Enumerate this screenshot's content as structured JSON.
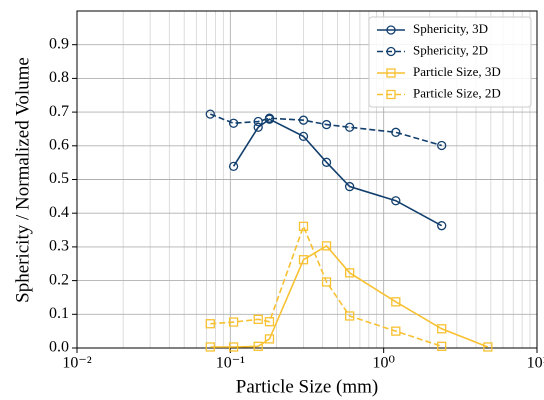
{
  "chart_data": {
    "type": "line",
    "xlabel": "Particle Size (mm)",
    "ylabel": "Sphericity / Normalized Volume",
    "xscale": "log",
    "xlim": [
      0.01,
      10
    ],
    "ylim": [
      0,
      1
    ],
    "xticks": [
      {
        "value": 0.01,
        "label": "10⁻²"
      },
      {
        "value": 0.1,
        "label": "10⁻¹"
      },
      {
        "value": 1,
        "label": "10⁰"
      },
      {
        "value": 10,
        "label": "10¹"
      }
    ],
    "yticks": [
      {
        "value": 0,
        "label": "0.0"
      },
      0.1,
      0.2,
      0.3,
      0.4,
      0.5,
      0.6,
      0.7,
      0.8,
      0.9
    ],
    "grid": true,
    "legend": "upper right",
    "series": [
      {
        "name": "Sphericity, 3D",
        "color": "#123f6d",
        "marker": "circle",
        "linestyle": "solid",
        "x": [
          0.105,
          0.152,
          0.18,
          0.3,
          0.424,
          0.6,
          1.2,
          2.39
        ],
        "values": [
          0.539,
          0.655,
          0.679,
          0.628,
          0.551,
          0.479,
          0.437,
          0.363
        ]
      },
      {
        "name": "Sphericity, 2D",
        "color": "#123f6d",
        "marker": "circle",
        "linestyle": "dashed",
        "x": [
          0.074,
          0.105,
          0.152,
          0.18,
          0.3,
          0.424,
          0.6,
          1.2,
          2.39
        ],
        "values": [
          0.694,
          0.667,
          0.672,
          0.682,
          0.676,
          0.663,
          0.655,
          0.64,
          0.601
        ]
      },
      {
        "name": "Particle Size, 3D",
        "color": "#f8c132",
        "marker": "square",
        "linestyle": "solid",
        "x": [
          0.074,
          0.105,
          0.152,
          0.18,
          0.3,
          0.424,
          0.6,
          1.2,
          2.39,
          4.78
        ],
        "values": [
          0.003,
          0.003,
          0.005,
          0.027,
          0.262,
          0.303,
          0.223,
          0.137,
          0.057,
          0.003
        ]
      },
      {
        "name": "Particle Size, 2D",
        "color": "#f8c132",
        "marker": "square",
        "linestyle": "dashed",
        "x": [
          0.074,
          0.105,
          0.152,
          0.18,
          0.3,
          0.424,
          0.6,
          1.2,
          2.39
        ],
        "values": [
          0.072,
          0.077,
          0.085,
          0.078,
          0.361,
          0.196,
          0.095,
          0.05,
          0.005
        ]
      }
    ]
  }
}
